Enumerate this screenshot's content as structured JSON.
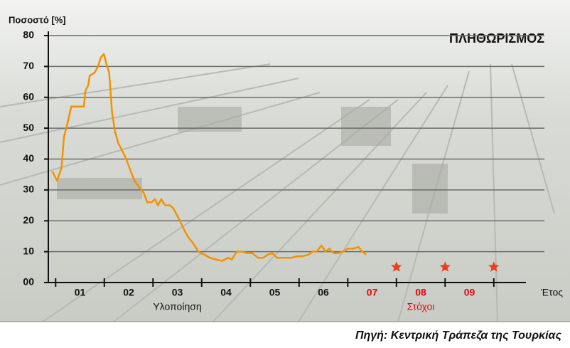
{
  "chart_data": {
    "type": "line",
    "title": "ΠΛΗΘΩΡΙΣΜΟΣ",
    "y_label": "Ποσοστό [%]",
    "x_label": "Έτος",
    "source": "Πηγή: Κεντρική Τράπεζα της Τουρκίας",
    "xlim": [
      2000.85,
      2010.66
    ],
    "ylim": [
      0,
      80
    ],
    "yticks": [
      {
        "value": 0,
        "label": "00"
      },
      10,
      20,
      30,
      40,
      50,
      60,
      70,
      80
    ],
    "xtick_marks": [
      2001,
      2002,
      2003,
      2004,
      2005,
      2006,
      2007,
      2008,
      2009,
      2010
    ],
    "xticks": [
      {
        "value": 2001.5,
        "label": "01"
      },
      {
        "value": 2002.5,
        "label": "02"
      },
      {
        "value": 2003.5,
        "label": "03"
      },
      {
        "value": 2004.5,
        "label": "04"
      },
      {
        "value": 2005.5,
        "label": "05"
      },
      {
        "value": 2006.5,
        "label": "06"
      },
      {
        "value": 2007.5,
        "label": "07"
      },
      {
        "value": 2008.5,
        "label": "08"
      },
      {
        "value": 2009.5,
        "label": "09"
      }
    ],
    "xtick_colors": [
      "#111111",
      "#111111",
      "#111111",
      "#111111",
      "#111111",
      "#111111",
      "#e30613",
      "#e30613",
      "#e30613"
    ],
    "grid": true,
    "series": [
      {
        "name": "Υλοποίηση",
        "color": "#f39200",
        "label_x": 2003.5,
        "label_color": "#111111",
        "x": [
          2000.93,
          2001.03,
          2001.12,
          2001.17,
          2001.25,
          2001.32,
          2001.43,
          2001.58,
          2001.61,
          2001.67,
          2001.7,
          2001.8,
          2001.87,
          2001.93,
          2001.99,
          2002.04,
          2002.1,
          2002.16,
          2002.22,
          2002.29,
          2002.36,
          2002.45,
          2002.52,
          2002.62,
          2002.71,
          2002.81,
          2002.88,
          2002.97,
          2003.04,
          2003.1,
          2003.17,
          2003.25,
          2003.35,
          2003.42,
          2003.52,
          2003.61,
          2003.71,
          2003.81,
          2003.93,
          2004.06,
          2004.17,
          2004.29,
          2004.41,
          2004.48,
          2004.54,
          2004.62,
          2004.72,
          2004.83,
          2004.94,
          2005.04,
          2005.16,
          2005.26,
          2005.35,
          2005.45,
          2005.55,
          2005.64,
          2005.74,
          2005.84,
          2005.96,
          2006.07,
          2006.19,
          2006.28,
          2006.36,
          2006.46,
          2006.54,
          2006.62,
          2006.71,
          2006.8,
          2006.91,
          2007.0,
          2007.12,
          2007.22,
          2007.3,
          2007.38
        ],
        "values": [
          36,
          33,
          37,
          47,
          52,
          57,
          57,
          57,
          62,
          64,
          67,
          68,
          70,
          73,
          74,
          71,
          68,
          55,
          49,
          45,
          43,
          40,
          37,
          33,
          31,
          29,
          26,
          26,
          27,
          25,
          27,
          25,
          25,
          24,
          21,
          18,
          15,
          13,
          10,
          9,
          8,
          7.5,
          7,
          7.5,
          8,
          7.5,
          10,
          10,
          9.5,
          9.5,
          8,
          8,
          9,
          9.5,
          8,
          8,
          8,
          8,
          8.5,
          8.5,
          9,
          10,
          10,
          12,
          10,
          11,
          9.5,
          9.5,
          10,
          11,
          11,
          11.5,
          10,
          9
        ]
      },
      {
        "name": "Στόχοι",
        "color": "#e8401c",
        "label_x": 2008.5,
        "label_color": "#e30613",
        "x": [
          2008,
          2009,
          2010
        ],
        "values": [
          5,
          5,
          5
        ]
      }
    ]
  }
}
